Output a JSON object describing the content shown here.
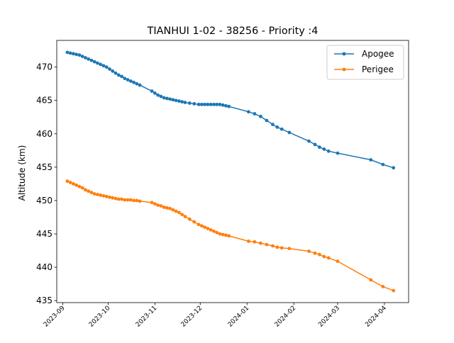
{
  "chart_data": {
    "type": "line",
    "title": "TIANHUI 1-02 - 38256 - Priority :4",
    "xlabel": "",
    "ylabel": "Altitude (km)",
    "xlim": [
      "2023-08-28",
      "2024-04-17"
    ],
    "ylim": [
      434.7,
      474.0
    ],
    "x_ticks": [
      "2023-09",
      "2023-10",
      "2023-11",
      "2023-12",
      "2024-01",
      "2024-02",
      "2024-03",
      "2024-04"
    ],
    "x_tick_dates": [
      "2023-09-01",
      "2023-10-01",
      "2023-11-01",
      "2023-12-01",
      "2024-01-01",
      "2024-02-01",
      "2024-03-01",
      "2024-04-01"
    ],
    "y_ticks": [
      435,
      440,
      445,
      450,
      455,
      460,
      465,
      470
    ],
    "legend_position": "top-right",
    "grid": false,
    "series": [
      {
        "name": "Apogee",
        "color": "#1f77b4",
        "points": [
          [
            "2023-09-04",
            472.2
          ],
          [
            "2023-09-06",
            472.1
          ],
          [
            "2023-09-08",
            472.0
          ],
          [
            "2023-09-10",
            471.9
          ],
          [
            "2023-09-12",
            471.8
          ],
          [
            "2023-09-14",
            471.6
          ],
          [
            "2023-09-16",
            471.4
          ],
          [
            "2023-09-18",
            471.2
          ],
          [
            "2023-09-20",
            471.0
          ],
          [
            "2023-09-22",
            470.8
          ],
          [
            "2023-09-24",
            470.6
          ],
          [
            "2023-09-26",
            470.4
          ],
          [
            "2023-09-28",
            470.2
          ],
          [
            "2023-09-30",
            470.0
          ],
          [
            "2023-10-02",
            469.7
          ],
          [
            "2023-10-04",
            469.4
          ],
          [
            "2023-10-06",
            469.1
          ],
          [
            "2023-10-08",
            468.8
          ],
          [
            "2023-10-10",
            468.6
          ],
          [
            "2023-10-12",
            468.3
          ],
          [
            "2023-10-14",
            468.1
          ],
          [
            "2023-10-16",
            467.9
          ],
          [
            "2023-10-18",
            467.7
          ],
          [
            "2023-10-20",
            467.5
          ],
          [
            "2023-10-22",
            467.3
          ],
          [
            "2023-10-30",
            466.4
          ],
          [
            "2023-11-01",
            466.1
          ],
          [
            "2023-11-03",
            465.8
          ],
          [
            "2023-11-05",
            465.6
          ],
          [
            "2023-11-07",
            465.4
          ],
          [
            "2023-11-09",
            465.3
          ],
          [
            "2023-11-11",
            465.2
          ],
          [
            "2023-11-13",
            465.1
          ],
          [
            "2023-11-15",
            465.0
          ],
          [
            "2023-11-17",
            464.9
          ],
          [
            "2023-11-19",
            464.8
          ],
          [
            "2023-11-21",
            464.7
          ],
          [
            "2023-11-24",
            464.6
          ],
          [
            "2023-11-27",
            464.5
          ],
          [
            "2023-11-30",
            464.4
          ],
          [
            "2023-12-02",
            464.4
          ],
          [
            "2023-12-04",
            464.4
          ],
          [
            "2023-12-06",
            464.4
          ],
          [
            "2023-12-08",
            464.4
          ],
          [
            "2023-12-10",
            464.4
          ],
          [
            "2023-12-12",
            464.4
          ],
          [
            "2023-12-14",
            464.4
          ],
          [
            "2023-12-16",
            464.3
          ],
          [
            "2023-12-18",
            464.2
          ],
          [
            "2023-12-20",
            464.1
          ],
          [
            "2024-01-02",
            463.3
          ],
          [
            "2024-01-06",
            463.0
          ],
          [
            "2024-01-10",
            462.6
          ],
          [
            "2024-01-14",
            462.0
          ],
          [
            "2024-01-18",
            461.4
          ],
          [
            "2024-01-21",
            461.0
          ],
          [
            "2024-01-24",
            460.7
          ],
          [
            "2024-01-29",
            460.2
          ],
          [
            "2024-02-11",
            458.9
          ],
          [
            "2024-02-15",
            458.4
          ],
          [
            "2024-02-18",
            458.0
          ],
          [
            "2024-02-21",
            457.7
          ],
          [
            "2024-02-24",
            457.4
          ],
          [
            "2024-03-01",
            457.1
          ],
          [
            "2024-03-23",
            456.1
          ],
          [
            "2024-03-31",
            455.4
          ],
          [
            "2024-04-07",
            454.9
          ]
        ]
      },
      {
        "name": "Perigee",
        "color": "#ff7f0e",
        "points": [
          [
            "2023-09-04",
            452.9
          ],
          [
            "2023-09-06",
            452.7
          ],
          [
            "2023-09-08",
            452.5
          ],
          [
            "2023-09-10",
            452.3
          ],
          [
            "2023-09-12",
            452.1
          ],
          [
            "2023-09-14",
            451.9
          ],
          [
            "2023-09-16",
            451.6
          ],
          [
            "2023-09-18",
            451.4
          ],
          [
            "2023-09-20",
            451.2
          ],
          [
            "2023-09-22",
            451.0
          ],
          [
            "2023-09-24",
            450.9
          ],
          [
            "2023-09-26",
            450.8
          ],
          [
            "2023-09-28",
            450.7
          ],
          [
            "2023-09-30",
            450.6
          ],
          [
            "2023-10-02",
            450.5
          ],
          [
            "2023-10-04",
            450.4
          ],
          [
            "2023-10-06",
            450.3
          ],
          [
            "2023-10-08",
            450.2
          ],
          [
            "2023-10-10",
            450.2
          ],
          [
            "2023-10-12",
            450.1
          ],
          [
            "2023-10-14",
            450.1
          ],
          [
            "2023-10-16",
            450.1
          ],
          [
            "2023-10-18",
            450.0
          ],
          [
            "2023-10-20",
            450.0
          ],
          [
            "2023-10-22",
            449.9
          ],
          [
            "2023-10-30",
            449.7
          ],
          [
            "2023-11-01",
            449.5
          ],
          [
            "2023-11-03",
            449.3
          ],
          [
            "2023-11-05",
            449.2
          ],
          [
            "2023-11-07",
            449.0
          ],
          [
            "2023-11-09",
            448.9
          ],
          [
            "2023-11-11",
            448.8
          ],
          [
            "2023-11-13",
            448.6
          ],
          [
            "2023-11-15",
            448.4
          ],
          [
            "2023-11-17",
            448.2
          ],
          [
            "2023-11-19",
            447.9
          ],
          [
            "2023-11-21",
            447.6
          ],
          [
            "2023-11-24",
            447.2
          ],
          [
            "2023-11-27",
            446.8
          ],
          [
            "2023-11-30",
            446.4
          ],
          [
            "2023-12-02",
            446.2
          ],
          [
            "2023-12-04",
            446.0
          ],
          [
            "2023-12-06",
            445.8
          ],
          [
            "2023-12-08",
            445.6
          ],
          [
            "2023-12-10",
            445.4
          ],
          [
            "2023-12-12",
            445.2
          ],
          [
            "2023-12-14",
            445.0
          ],
          [
            "2023-12-16",
            444.9
          ],
          [
            "2023-12-18",
            444.8
          ],
          [
            "2023-12-20",
            444.7
          ],
          [
            "2024-01-02",
            443.9
          ],
          [
            "2024-01-06",
            443.8
          ],
          [
            "2024-01-10",
            443.6
          ],
          [
            "2024-01-14",
            443.4
          ],
          [
            "2024-01-18",
            443.2
          ],
          [
            "2024-01-21",
            443.0
          ],
          [
            "2024-01-24",
            442.9
          ],
          [
            "2024-01-29",
            442.8
          ],
          [
            "2024-02-11",
            442.4
          ],
          [
            "2024-02-15",
            442.1
          ],
          [
            "2024-02-18",
            441.9
          ],
          [
            "2024-02-21",
            441.6
          ],
          [
            "2024-02-24",
            441.4
          ],
          [
            "2024-03-01",
            440.9
          ],
          [
            "2024-03-23",
            438.1
          ],
          [
            "2024-03-31",
            437.1
          ],
          [
            "2024-04-07",
            436.5
          ]
        ]
      }
    ]
  }
}
